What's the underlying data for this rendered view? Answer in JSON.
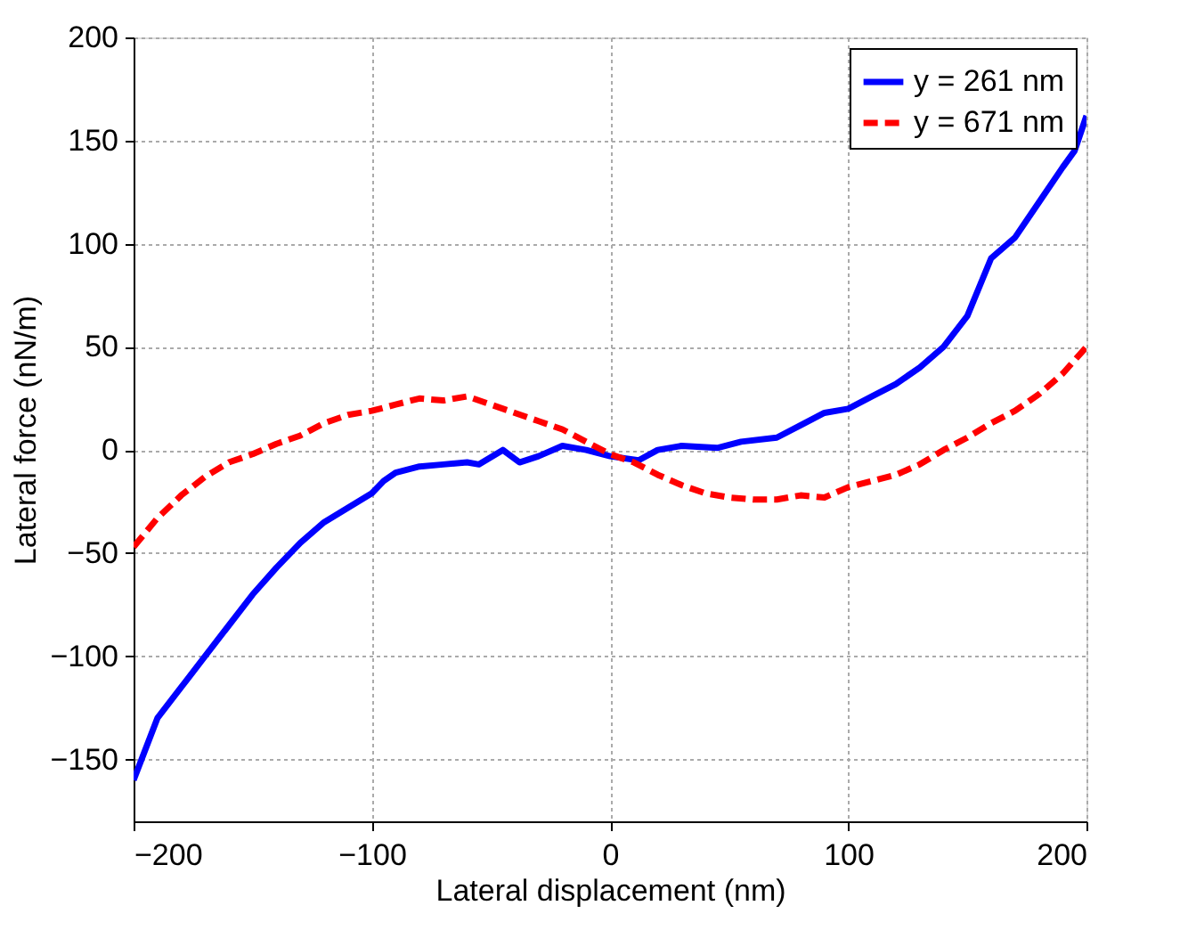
{
  "chart_data": {
    "type": "line",
    "xlabel": "Lateral displacement (nm)",
    "ylabel": "Lateral force (nN/m)",
    "xlim": [
      -200,
      200
    ],
    "xticks": [
      -200,
      -100,
      0,
      100,
      200
    ],
    "ylim": [
      -180,
      200
    ],
    "yticks": [
      -150,
      -100,
      -50,
      0,
      50,
      100,
      150,
      200
    ],
    "grid": true,
    "legend": "top right",
    "series": [
      {
        "name": "y = 261 nm",
        "color": "#0000ff",
        "line_style": "solid",
        "x": [
          -200,
          -190,
          -180,
          -170,
          -160,
          -150,
          -140,
          -130,
          -120,
          -110,
          -100,
          -95,
          -90,
          -80,
          -70,
          -60,
          -55,
          -45,
          -38,
          -30,
          -20,
          -10,
          0,
          12,
          20,
          30,
          45,
          55,
          70,
          80,
          90,
          100,
          110,
          120,
          130,
          140,
          150,
          160,
          170,
          180,
          190,
          195,
          200
        ],
        "values": [
          -160,
          -130,
          -115,
          -100,
          -85,
          -70,
          -57,
          -45,
          -35,
          -28,
          -21,
          -15,
          -11,
          -8,
          -7,
          -6,
          -7,
          0,
          -6,
          -3,
          2,
          0,
          -3,
          -5,
          0,
          2,
          1,
          4,
          6,
          12,
          18,
          20,
          26,
          32,
          40,
          50,
          65,
          93,
          103,
          120,
          137,
          145,
          162
        ]
      },
      {
        "name": "y = 671 nm",
        "color": "#ff0000",
        "line_style": "dashed",
        "x": [
          -200,
          -190,
          -180,
          -170,
          -160,
          -150,
          -140,
          -130,
          -120,
          -110,
          -100,
          -90,
          -80,
          -70,
          -60,
          -50,
          -40,
          -30,
          -20,
          -10,
          0,
          10,
          20,
          30,
          40,
          50,
          60,
          70,
          80,
          90,
          100,
          110,
          120,
          130,
          140,
          150,
          160,
          170,
          180,
          190,
          200
        ],
        "values": [
          -47,
          -33,
          -22,
          -13,
          -6,
          -2,
          3,
          7,
          13,
          17,
          19,
          22,
          25,
          24,
          26,
          22,
          18,
          14,
          10,
          4,
          -2,
          -6,
          -12,
          -17,
          -21,
          -23,
          -24,
          -24,
          -22,
          -23,
          -18,
          -15,
          -12,
          -7,
          0,
          6,
          13,
          19,
          27,
          37,
          50
        ]
      }
    ]
  }
}
